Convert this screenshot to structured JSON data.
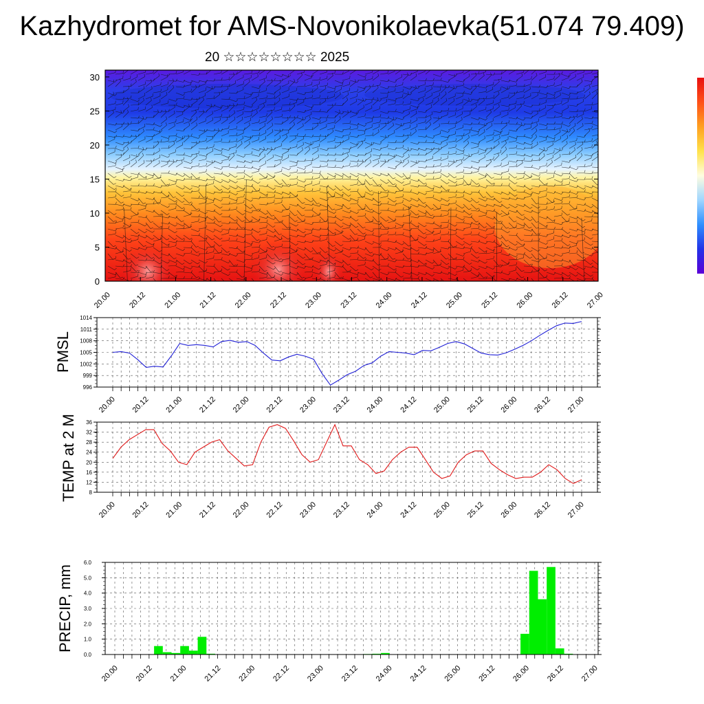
{
  "title": "Kazhydromet for AMS-Novonikolaevka(51.074 79.409)",
  "subtitle": "20 ☆☆☆☆☆☆☆☆ 2025",
  "colors": {
    "pmsl_line": "#1f1fd6",
    "temp_line": "#e01818",
    "precip_bar": "#00ee00"
  },
  "chart_data": [
    {
      "type": "heatmap",
      "title": "",
      "xlabel": "",
      "ylabel": "",
      "x_tick_labels": [
        "20.00",
        "20.12",
        "21.00",
        "21.12",
        "22.00",
        "22.12",
        "23.00",
        "23.12",
        "24.00",
        "24.12",
        "25.00",
        "25.12",
        "26.00",
        "26.12",
        "27.00"
      ],
      "y_ticks": [
        0,
        5,
        10,
        15,
        20,
        25,
        30
      ],
      "ylim": [
        0,
        31
      ],
      "colorbar": [
        "#5b00d8",
        "#2233e8",
        "#2f8fff",
        "#9fd6ff",
        "#fffde0",
        "#ffe24a",
        "#ffa020",
        "#ff5018",
        "#e81010"
      ],
      "overlay": "wind barbs"
    },
    {
      "type": "line",
      "ylabel": "PMSL",
      "ylim": [
        996,
        1014
      ],
      "y_ticks": [
        996,
        999,
        1002,
        1005,
        1008,
        1011,
        1014
      ],
      "x_tick_labels": [
        "20.00",
        "20.12",
        "21.00",
        "21.12",
        "22.00",
        "22.12",
        "23.00",
        "23.12",
        "24.00",
        "24.12",
        "25.00",
        "25.12",
        "26.00",
        "26.12",
        "27.00"
      ],
      "grid": true,
      "series": [
        {
          "values": [
            1005,
            1005.2,
            1004.8,
            1003.1,
            1001.1,
            1001.4,
            1001.2,
            1004.1,
            1007.3,
            1006.8,
            1007,
            1006.8,
            1006.4,
            1007.8,
            1008.1,
            1007.6,
            1007.8,
            1006.8,
            1004.8,
            1003,
            1002.8,
            1003.8,
            1004.5,
            1004,
            1003.2,
            999.5,
            996.5,
            997.8,
            999.2,
            1000.1,
            1001.6,
            1002.3,
            1004,
            1005.2,
            1005,
            1004.8,
            1004.4,
            1005.5,
            1005.4,
            1006.3,
            1007.3,
            1007.8,
            1007.2,
            1006,
            1004.8,
            1004.4,
            1004.3,
            1004.9,
            1005.8,
            1006.8,
            1008,
            1009.4,
            1010.7,
            1011.9,
            1012.6,
            1012.5,
            1013
          ]
        }
      ]
    },
    {
      "type": "line",
      "ylabel": "TEMP at 2 M",
      "ylim": [
        8,
        36
      ],
      "y_ticks": [
        8,
        12,
        16,
        20,
        24,
        28,
        32,
        36
      ],
      "x_tick_labels": [
        "20.00",
        "20.12",
        "21.00",
        "21.12",
        "22.00",
        "22.12",
        "23.00",
        "23.12",
        "24.00",
        "24.12",
        "25.00",
        "25.12",
        "26.00",
        "26.12",
        "27.00"
      ],
      "grid": true,
      "series": [
        {
          "values": [
            21.5,
            26,
            29,
            31,
            33,
            33,
            27.5,
            24.5,
            20,
            19,
            24,
            26,
            28,
            29,
            24.5,
            21.5,
            18.5,
            19,
            28,
            34,
            35,
            33.5,
            28.5,
            23,
            20,
            21,
            28,
            35,
            26.5,
            26.5,
            21,
            19,
            15.5,
            16.5,
            21,
            24,
            26,
            26,
            21,
            16,
            13.5,
            14.5,
            20,
            23,
            24.5,
            24.5,
            19.5,
            17,
            15,
            13.5,
            14,
            14,
            16,
            19,
            17,
            13.5,
            11.5,
            13
          ]
        }
      ]
    },
    {
      "type": "bar",
      "ylabel": "PRECIP, mm",
      "ylim": [
        0,
        6
      ],
      "y_ticks": [
        "0.0",
        "1.0",
        "2.0",
        "3.0",
        "4.0",
        "5.0",
        "6.0"
      ],
      "x_tick_labels": [
        "20.00",
        "20.12",
        "21.00",
        "21.12",
        "22.00",
        "22.12",
        "23.00",
        "23.12",
        "24.00",
        "24.12",
        "25.00",
        "25.12",
        "26.00",
        "26.12",
        "27.00"
      ],
      "grid": true,
      "values": [
        0,
        0,
        0,
        0,
        0,
        0.55,
        0.15,
        0.1,
        0.55,
        0.25,
        1.15,
        0.05,
        0,
        0,
        0,
        0,
        0,
        0,
        0,
        0,
        0,
        0,
        0,
        0,
        0,
        0,
        0,
        0,
        0,
        0.03,
        0.05,
        0.1,
        0,
        0,
        0,
        0,
        0,
        0,
        0,
        0,
        0,
        0,
        0,
        0,
        0,
        0,
        0,
        1.35,
        5.45,
        3.6,
        5.7,
        0.4,
        0.05,
        0,
        0,
        0
      ]
    }
  ]
}
